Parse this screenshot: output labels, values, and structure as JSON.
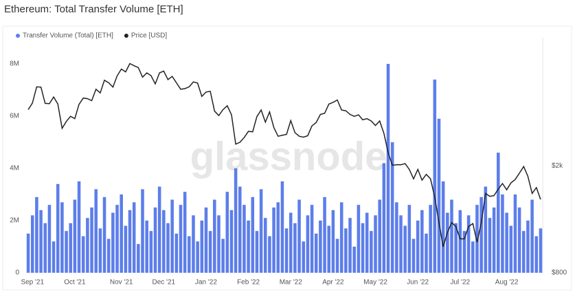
{
  "chart_data": {
    "type": "bar-line",
    "title": "Ethereum: Total Transfer Volume [ETH]",
    "watermark": "glassnode",
    "categories": [
      null,
      "Sep '21",
      null,
      null,
      null,
      null,
      null,
      null,
      null,
      null,
      null,
      "Oct '21",
      null,
      null,
      null,
      null,
      null,
      null,
      null,
      null,
      null,
      null,
      "Nov '21",
      null,
      null,
      null,
      null,
      null,
      null,
      null,
      null,
      null,
      "Dec '21",
      null,
      null,
      null,
      null,
      null,
      null,
      null,
      null,
      null,
      "Jan '22",
      null,
      null,
      null,
      null,
      null,
      null,
      null,
      null,
      null,
      "Feb '22",
      null,
      null,
      null,
      null,
      null,
      null,
      null,
      null,
      null,
      "Mar '22",
      null,
      null,
      null,
      null,
      null,
      null,
      null,
      null,
      null,
      "Apr '22",
      null,
      null,
      null,
      null,
      null,
      null,
      null,
      null,
      null,
      "May '22",
      null,
      null,
      null,
      null,
      null,
      null,
      null,
      null,
      null,
      "Jun '22",
      null,
      null,
      null,
      null,
      null,
      null,
      null,
      null,
      null,
      "Jul '22",
      null,
      null,
      null,
      null,
      null,
      null,
      null,
      null,
      null,
      null,
      "Aug '22",
      null,
      null,
      null,
      null,
      null,
      null,
      null,
      null
    ],
    "series": [
      {
        "name": "Transfer Volume (Total) [ETH]",
        "color": "#5d7eea",
        "kind": "bar",
        "values": [
          1500000,
          2200000,
          2900000,
          2400000,
          1900000,
          2600000,
          1200000,
          3400000,
          2700000,
          1600000,
          1900000,
          2800000,
          3500000,
          1400000,
          2100000,
          2500000,
          3200000,
          1700000,
          2900000,
          1300000,
          2300000,
          2600000,
          3000000,
          1800000,
          2400000,
          2700000,
          1100000,
          3200000,
          2000000,
          1600000,
          2500000,
          3300000,
          2400000,
          1900000,
          2800000,
          1500000,
          2600000,
          3100000,
          1400000,
          2200000,
          1200000,
          2000000,
          2500000,
          1600000,
          2800000,
          2200000,
          1300000,
          3100000,
          2400000,
          4000000,
          3300000,
          2600000,
          2000000,
          2900000,
          1600000,
          3200000,
          2100000,
          1400000,
          2500000,
          2700000,
          3500000,
          1700000,
          2300000,
          1900000,
          2800000,
          1200000,
          2200000,
          2600000,
          1500000,
          2000000,
          2900000,
          1800000,
          2400000,
          1300000,
          2700000,
          1700000,
          2100000,
          1000000,
          2600000,
          1900000,
          2300000,
          1600000,
          2200000,
          2800000,
          4200000,
          8000000,
          5000000,
          2700000,
          2200000,
          1800000,
          2600000,
          1300000,
          2000000,
          2400000,
          1500000,
          2600000,
          7400000,
          5900000,
          3500000,
          2300000,
          2800000,
          1900000,
          2400000,
          1600000,
          2200000,
          1200000,
          2600000,
          2900000,
          3300000,
          2100000,
          2500000,
          4600000,
          3000000,
          2300000,
          1800000,
          3000000,
          2500000,
          1600000,
          2000000,
          2800000,
          1400000,
          1700000
        ]
      },
      {
        "name": "Price [USD]",
        "color": "#222222",
        "kind": "line",
        "axis": "y2",
        "values": [
          3240,
          3430,
          3940,
          3930,
          3420,
          3410,
          3610,
          3400,
          2760,
          2930,
          3060,
          3000,
          3390,
          3580,
          3560,
          3500,
          3860,
          3740,
          4170,
          4080,
          3930,
          4330,
          4590,
          4480,
          4810,
          4720,
          4650,
          4280,
          4440,
          4340,
          4040,
          4440,
          4510,
          4190,
          4310,
          4080,
          3860,
          3880,
          3940,
          4110,
          4070,
          3630,
          3770,
          3790,
          3200,
          3080,
          3240,
          3350,
          3100,
          2410,
          2450,
          2550,
          2690,
          2680,
          3050,
          3230,
          2910,
          3180,
          2780,
          2580,
          2600,
          2620,
          2950,
          2660,
          2580,
          2560,
          2590,
          2820,
          2900,
          3110,
          3140,
          3400,
          3450,
          3520,
          3230,
          3210,
          3110,
          3060,
          3100,
          2970,
          3000,
          2940,
          2830,
          2940,
          2640,
          2240,
          2010,
          2020,
          2020,
          2040,
          1940,
          1790,
          1940,
          1770,
          1860,
          1790,
          1530,
          1230,
          1000,
          1130,
          1230,
          1190,
          1070,
          1070,
          1190,
          1220,
          1040,
          1230,
          1580,
          1540,
          1550,
          1640,
          1720,
          1630,
          1730,
          1780,
          1880,
          1990,
          1830,
          1580,
          1660,
          1500
        ]
      }
    ],
    "ylim": [
      0,
      9000000
    ],
    "yticks": [
      0,
      {
        "value": 2000000,
        "label": "2M"
      },
      {
        "value": 4000000,
        "label": "4M"
      },
      {
        "value": 6000000,
        "label": "6M"
      },
      {
        "value": 8000000,
        "label": "8M"
      }
    ],
    "y2lim": [
      800,
      6000
    ],
    "y2ticks": [
      {
        "value": 800,
        "label": "$800"
      },
      {
        "value": 2000,
        "label": "$2k"
      }
    ],
    "y2log": true,
    "grid": false,
    "legend": "top-left"
  }
}
